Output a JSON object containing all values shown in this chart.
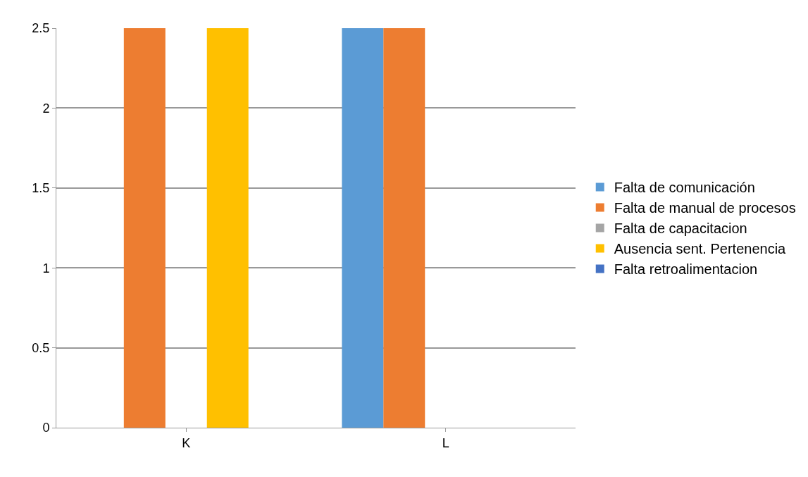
{
  "chart_data": {
    "type": "bar",
    "categories": [
      "K",
      "L"
    ],
    "series": [
      {
        "name": "Falta de comunicación",
        "color": "#5b9bd5",
        "values": [
          0,
          2.5
        ]
      },
      {
        "name": "Falta de manual de procesos",
        "color": "#ed7d31",
        "values": [
          2.5,
          2.5
        ]
      },
      {
        "name": "Falta de capacitacion",
        "color": "#a5a5a5",
        "values": [
          0,
          0
        ]
      },
      {
        "name": "Ausencia sent. Pertenencia",
        "color": "#ffc000",
        "values": [
          2.5,
          0
        ]
      },
      {
        "name": "Falta retroalimentacion",
        "color": "#4472c4",
        "values": [
          0,
          0
        ]
      }
    ],
    "ylim": [
      0,
      2.5
    ],
    "yticks": [
      0,
      0.5,
      1,
      1.5,
      2,
      2.5
    ],
    "grid": "y",
    "legend": "right"
  }
}
